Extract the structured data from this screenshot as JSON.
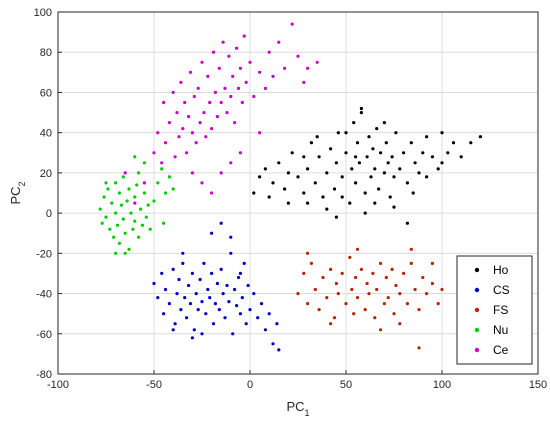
{
  "chart_data": {
    "type": "scatter",
    "title": "",
    "xlabel": {
      "base": "PC",
      "sub": "1"
    },
    "ylabel": {
      "base": "PC",
      "sub": "2"
    },
    "xlim": [
      -100,
      150
    ],
    "ylim": [
      -80,
      100
    ],
    "xticks": [
      -100,
      -50,
      0,
      50,
      100,
      150
    ],
    "yticks": [
      -80,
      -60,
      -40,
      -20,
      0,
      20,
      40,
      60,
      80,
      100
    ],
    "grid": true,
    "legend_position": "bottom-right",
    "series": [
      {
        "name": "Ho",
        "color": "#000000",
        "points": [
          [
            2,
            10
          ],
          [
            5,
            18
          ],
          [
            8,
            22
          ],
          [
            10,
            8
          ],
          [
            12,
            15
          ],
          [
            15,
            25
          ],
          [
            18,
            12
          ],
          [
            20,
            5
          ],
          [
            22,
            30
          ],
          [
            25,
            18
          ],
          [
            28,
            10
          ],
          [
            30,
            22
          ],
          [
            32,
            35
          ],
          [
            34,
            15
          ],
          [
            36,
            28
          ],
          [
            38,
            8
          ],
          [
            40,
            20
          ],
          [
            42,
            32
          ],
          [
            44,
            12
          ],
          [
            45,
            25
          ],
          [
            46,
            40
          ],
          [
            48,
            18
          ],
          [
            50,
            30
          ],
          [
            52,
            5
          ],
          [
            53,
            22
          ],
          [
            54,
            45
          ],
          [
            55,
            15
          ],
          [
            56,
            35
          ],
          [
            57,
            25
          ],
          [
            58,
            50
          ],
          [
            60,
            10
          ],
          [
            61,
            28
          ],
          [
            62,
            38
          ],
          [
            63,
            18
          ],
          [
            64,
            32
          ],
          [
            65,
            22
          ],
          [
            66,
            42
          ],
          [
            67,
            12
          ],
          [
            68,
            30
          ],
          [
            70,
            20
          ],
          [
            71,
            35
          ],
          [
            72,
            25
          ],
          [
            73,
            8
          ],
          [
            74,
            28
          ],
          [
            75,
            18
          ],
          [
            76,
            40
          ],
          [
            78,
            22
          ],
          [
            80,
            30
          ],
          [
            82,
            15
          ],
          [
            84,
            35
          ],
          [
            86,
            25
          ],
          [
            88,
            20
          ],
          [
            90,
            30
          ],
          [
            92,
            18
          ],
          [
            95,
            28
          ],
          [
            98,
            22
          ],
          [
            100,
            25
          ],
          [
            103,
            30
          ],
          [
            106,
            35
          ],
          [
            110,
            28
          ],
          [
            115,
            35
          ],
          [
            120,
            38
          ],
          [
            35,
            38
          ],
          [
            45,
            -2
          ],
          [
            58,
            52
          ],
          [
            82,
            -5
          ],
          [
            60,
            0
          ],
          [
            40,
            2
          ],
          [
            50,
            40
          ],
          [
            65,
            5
          ],
          [
            20,
            20
          ],
          [
            28,
            28
          ],
          [
            48,
            8
          ],
          [
            55,
            28
          ],
          [
            70,
            45
          ],
          [
            85,
            10
          ],
          [
            92,
            38
          ],
          [
            30,
            5
          ],
          [
            75,
            3
          ],
          [
            100,
            40
          ]
        ]
      },
      {
        "name": "CS",
        "color": "#0000cc",
        "points": [
          [
            -50,
            -35
          ],
          [
            -48,
            -42
          ],
          [
            -46,
            -30
          ],
          [
            -45,
            -50
          ],
          [
            -44,
            -38
          ],
          [
            -42,
            -45
          ],
          [
            -40,
            -28
          ],
          [
            -39,
            -55
          ],
          [
            -38,
            -40
          ],
          [
            -37,
            -33
          ],
          [
            -36,
            -48
          ],
          [
            -35,
            -25
          ],
          [
            -34,
            -42
          ],
          [
            -33,
            -52
          ],
          [
            -32,
            -36
          ],
          [
            -31,
            -45
          ],
          [
            -30,
            -30
          ],
          [
            -29,
            -58
          ],
          [
            -28,
            -40
          ],
          [
            -27,
            -48
          ],
          [
            -26,
            -33
          ],
          [
            -25,
            -44
          ],
          [
            -24,
            -25
          ],
          [
            -23,
            -50
          ],
          [
            -22,
            -38
          ],
          [
            -21,
            -42
          ],
          [
            -20,
            -30
          ],
          [
            -19,
            -55
          ],
          [
            -18,
            -45
          ],
          [
            -17,
            -35
          ],
          [
            -16,
            -48
          ],
          [
            -15,
            -28
          ],
          [
            -14,
            -40
          ],
          [
            -13,
            -52
          ],
          [
            -12,
            -36
          ],
          [
            -11,
            -44
          ],
          [
            -10,
            -20
          ],
          [
            -9,
            -60
          ],
          [
            -8,
            -38
          ],
          [
            -7,
            -46
          ],
          [
            -6,
            -32
          ],
          [
            -5,
            -50
          ],
          [
            -4,
            -42
          ],
          [
            -3,
            -25
          ],
          [
            -2,
            -55
          ],
          [
            -1,
            -36
          ],
          [
            0,
            -48
          ],
          [
            2,
            -40
          ],
          [
            4,
            -52
          ],
          [
            6,
            -45
          ],
          [
            8,
            -58
          ],
          [
            10,
            -50
          ],
          [
            12,
            -65
          ],
          [
            14,
            -55
          ],
          [
            15,
            -68
          ],
          [
            -20,
            -10
          ],
          [
            -15,
            -5
          ],
          [
            -30,
            -62
          ],
          [
            -40,
            -58
          ],
          [
            -25,
            -60
          ],
          [
            -10,
            -12
          ],
          [
            -5,
            -30
          ],
          [
            -35,
            -20
          ]
        ]
      },
      {
        "name": "FS",
        "color": "#bb2200",
        "points": [
          [
            25,
            -40
          ],
          [
            28,
            -30
          ],
          [
            30,
            -45
          ],
          [
            32,
            -25
          ],
          [
            34,
            -38
          ],
          [
            36,
            -48
          ],
          [
            38,
            -32
          ],
          [
            40,
            -42
          ],
          [
            42,
            -28
          ],
          [
            44,
            -52
          ],
          [
            45,
            -35
          ],
          [
            46,
            -40
          ],
          [
            48,
            -30
          ],
          [
            50,
            -45
          ],
          [
            52,
            -22
          ],
          [
            53,
            -38
          ],
          [
            54,
            -50
          ],
          [
            55,
            -32
          ],
          [
            56,
            -42
          ],
          [
            58,
            -28
          ],
          [
            60,
            -48
          ],
          [
            61,
            -35
          ],
          [
            62,
            -40
          ],
          [
            64,
            -30
          ],
          [
            65,
            -52
          ],
          [
            66,
            -38
          ],
          [
            68,
            -25
          ],
          [
            70,
            -45
          ],
          [
            71,
            -32
          ],
          [
            72,
            -42
          ],
          [
            74,
            -28
          ],
          [
            75,
            -50
          ],
          [
            76,
            -36
          ],
          [
            78,
            -40
          ],
          [
            80,
            -30
          ],
          [
            82,
            -45
          ],
          [
            84,
            -25
          ],
          [
            86,
            -38
          ],
          [
            88,
            -48
          ],
          [
            90,
            -32
          ],
          [
            92,
            -40
          ],
          [
            95,
            -35
          ],
          [
            98,
            -45
          ],
          [
            100,
            -38
          ],
          [
            88,
            -67
          ],
          [
            84,
            -18
          ],
          [
            56,
            -18
          ],
          [
            42,
            -55
          ],
          [
            68,
            -58
          ],
          [
            30,
            -20
          ],
          [
            78,
            -55
          ],
          [
            95,
            -25
          ]
        ]
      },
      {
        "name": "Nu",
        "color": "#00cc00",
        "points": [
          [
            -78,
            2
          ],
          [
            -77,
            -5
          ],
          [
            -76,
            8
          ],
          [
            -75,
            -2
          ],
          [
            -74,
            12
          ],
          [
            -73,
            -8
          ],
          [
            -72,
            5
          ],
          [
            -71,
            -12
          ],
          [
            -70,
            15
          ],
          [
            -70,
            0
          ],
          [
            -69,
            -6
          ],
          [
            -68,
            10
          ],
          [
            -68,
            -15
          ],
          [
            -67,
            4
          ],
          [
            -66,
            -3
          ],
          [
            -66,
            18
          ],
          [
            -65,
            -10
          ],
          [
            -64,
            6
          ],
          [
            -63,
            -18
          ],
          [
            -63,
            12
          ],
          [
            -62,
            0
          ],
          [
            -61,
            -8
          ],
          [
            -60,
            8
          ],
          [
            -60,
            -4
          ],
          [
            -59,
            14
          ],
          [
            -58,
            -12
          ],
          [
            -57,
            2
          ],
          [
            -56,
            -6
          ],
          [
            -55,
            10
          ],
          [
            -54,
            -2
          ],
          [
            -53,
            4
          ],
          [
            -52,
            -8
          ],
          [
            -50,
            6
          ],
          [
            -48,
            15
          ],
          [
            -46,
            22
          ],
          [
            -44,
            10
          ],
          [
            -42,
            18
          ],
          [
            -40,
            12
          ],
          [
            -55,
            25
          ],
          [
            -60,
            28
          ],
          [
            -70,
            -20
          ],
          [
            -65,
            -20
          ],
          [
            -75,
            15
          ],
          [
            -58,
            20
          ],
          [
            -45,
            -5
          ]
        ]
      },
      {
        "name": "Ce",
        "color": "#cc00cc",
        "points": [
          [
            -50,
            30
          ],
          [
            -48,
            40
          ],
          [
            -46,
            25
          ],
          [
            -45,
            55
          ],
          [
            -44,
            35
          ],
          [
            -42,
            45
          ],
          [
            -40,
            60
          ],
          [
            -39,
            28
          ],
          [
            -38,
            50
          ],
          [
            -37,
            38
          ],
          [
            -36,
            65
          ],
          [
            -35,
            42
          ],
          [
            -34,
            55
          ],
          [
            -33,
            30
          ],
          [
            -32,
            48
          ],
          [
            -31,
            70
          ],
          [
            -30,
            40
          ],
          [
            -29,
            58
          ],
          [
            -28,
            35
          ],
          [
            -27,
            62
          ],
          [
            -26,
            45
          ],
          [
            -25,
            75
          ],
          [
            -24,
            50
          ],
          [
            -23,
            38
          ],
          [
            -22,
            68
          ],
          [
            -21,
            55
          ],
          [
            -20,
            42
          ],
          [
            -19,
            80
          ],
          [
            -18,
            60
          ],
          [
            -17,
            48
          ],
          [
            -16,
            72
          ],
          [
            -15,
            55
          ],
          [
            -14,
            85
          ],
          [
            -13,
            62
          ],
          [
            -12,
            50
          ],
          [
            -11,
            78
          ],
          [
            -10,
            58
          ],
          [
            -9,
            68
          ],
          [
            -8,
            45
          ],
          [
            -7,
            82
          ],
          [
            -6,
            62
          ],
          [
            -5,
            72
          ],
          [
            -4,
            55
          ],
          [
            -3,
            88
          ],
          [
            -2,
            65
          ],
          [
            0,
            75
          ],
          [
            2,
            58
          ],
          [
            5,
            70
          ],
          [
            8,
            62
          ],
          [
            10,
            80
          ],
          [
            12,
            68
          ],
          [
            15,
            85
          ],
          [
            18,
            72
          ],
          [
            22,
            94
          ],
          [
            25,
            78
          ],
          [
            28,
            65
          ],
          [
            30,
            72
          ],
          [
            35,
            75
          ],
          [
            -20,
            10
          ],
          [
            -15,
            20
          ],
          [
            -25,
            15
          ],
          [
            -10,
            25
          ],
          [
            -55,
            15
          ],
          [
            -60,
            5
          ],
          [
            -65,
            20
          ],
          [
            -30,
            20
          ],
          [
            -5,
            30
          ],
          [
            5,
            40
          ]
        ]
      }
    ]
  }
}
